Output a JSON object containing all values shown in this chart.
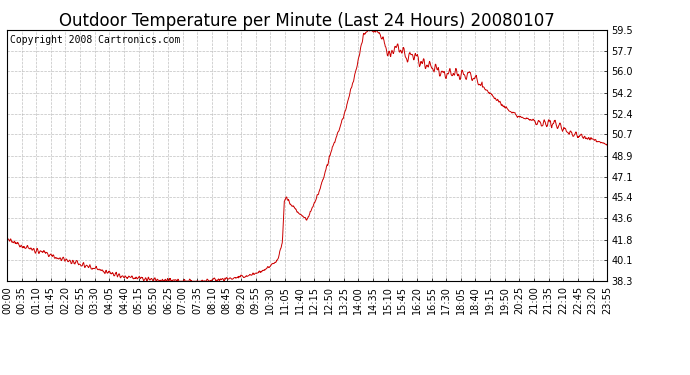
{
  "title": "Outdoor Temperature per Minute (Last 24 Hours) 20080107",
  "copyright_text": "Copyright 2008 Cartronics.com",
  "line_color": "#cc0000",
  "background_color": "#ffffff",
  "grid_color": "#b0b0b0",
  "y_ticks": [
    38.3,
    40.1,
    41.8,
    43.6,
    45.4,
    47.1,
    48.9,
    50.7,
    52.4,
    54.2,
    56.0,
    57.7,
    59.5
  ],
  "ylim": [
    38.3,
    59.5
  ],
  "x_tick_labels": [
    "00:00",
    "00:35",
    "01:10",
    "01:45",
    "02:20",
    "02:55",
    "03:30",
    "04:05",
    "04:40",
    "05:15",
    "05:50",
    "06:25",
    "07:00",
    "07:35",
    "08:10",
    "08:45",
    "09:20",
    "09:55",
    "10:30",
    "11:05",
    "11:40",
    "12:15",
    "12:50",
    "13:25",
    "14:00",
    "14:35",
    "15:10",
    "15:45",
    "16:20",
    "16:55",
    "17:30",
    "18:05",
    "18:40",
    "19:15",
    "19:50",
    "20:25",
    "21:00",
    "21:35",
    "22:10",
    "22:45",
    "23:20",
    "23:55"
  ],
  "title_fontsize": 12,
  "tick_fontsize": 7,
  "copyright_fontsize": 7,
  "ylabel_fontsize": 8
}
